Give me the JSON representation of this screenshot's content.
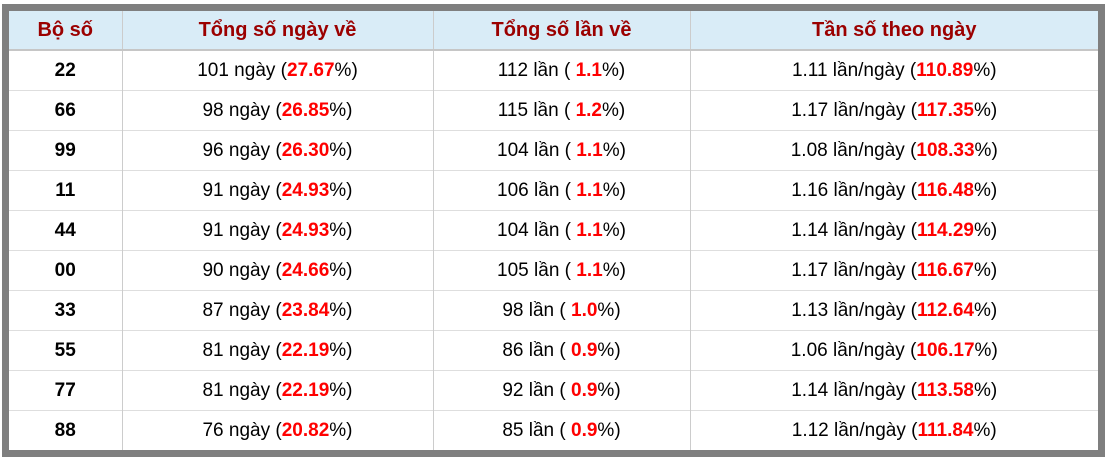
{
  "colors": {
    "outer_border": "#7f7f7f",
    "header_background": "#d9ecf7",
    "header_text": "#9b0000",
    "highlight_red": "#ff0000",
    "row_background": "#ffffff",
    "grid_line": "#cccccc"
  },
  "table": {
    "headers": [
      "Bộ số",
      "Tổng số ngày về",
      "Tổng số lần về",
      "Tần số theo ngày"
    ],
    "rows": [
      {
        "pair": "22",
        "days": {
          "pre": "101 ngày (",
          "em": "27.67",
          "post": "%)"
        },
        "times": {
          "pre": "112 lần ( ",
          "em": "1.1",
          "post": "%)"
        },
        "freq": {
          "pre": "1.11 lần/ngày (",
          "em": "110.89",
          "post": "%)"
        }
      },
      {
        "pair": "66",
        "days": {
          "pre": "98 ngày (",
          "em": "26.85",
          "post": "%)"
        },
        "times": {
          "pre": "115 lần ( ",
          "em": "1.2",
          "post": "%)"
        },
        "freq": {
          "pre": "1.17 lần/ngày (",
          "em": "117.35",
          "post": "%)"
        }
      },
      {
        "pair": "99",
        "days": {
          "pre": "96 ngày (",
          "em": "26.30",
          "post": "%)"
        },
        "times": {
          "pre": "104 lần ( ",
          "em": "1.1",
          "post": "%)"
        },
        "freq": {
          "pre": "1.08 lần/ngày (",
          "em": "108.33",
          "post": "%)"
        }
      },
      {
        "pair": "11",
        "days": {
          "pre": "91 ngày (",
          "em": "24.93",
          "post": "%)"
        },
        "times": {
          "pre": "106 lần ( ",
          "em": "1.1",
          "post": "%)"
        },
        "freq": {
          "pre": "1.16 lần/ngày (",
          "em": "116.48",
          "post": "%)"
        }
      },
      {
        "pair": "44",
        "days": {
          "pre": "91 ngày (",
          "em": "24.93",
          "post": "%)"
        },
        "times": {
          "pre": "104 lần ( ",
          "em": "1.1",
          "post": "%)"
        },
        "freq": {
          "pre": "1.14 lần/ngày (",
          "em": "114.29",
          "post": "%)"
        }
      },
      {
        "pair": "00",
        "days": {
          "pre": "90 ngày (",
          "em": "24.66",
          "post": "%)"
        },
        "times": {
          "pre": "105 lần ( ",
          "em": "1.1",
          "post": "%)"
        },
        "freq": {
          "pre": "1.17 lần/ngày (",
          "em": "116.67",
          "post": "%)"
        }
      },
      {
        "pair": "33",
        "days": {
          "pre": "87 ngày (",
          "em": "23.84",
          "post": "%)"
        },
        "times": {
          "pre": "98 lần ( ",
          "em": "1.0",
          "post": "%)"
        },
        "freq": {
          "pre": "1.13 lần/ngày (",
          "em": "112.64",
          "post": "%)"
        }
      },
      {
        "pair": "55",
        "days": {
          "pre": "81 ngày (",
          "em": "22.19",
          "post": "%)"
        },
        "times": {
          "pre": "86 lần ( ",
          "em": "0.9",
          "post": "%)"
        },
        "freq": {
          "pre": "1.06 lần/ngày (",
          "em": "106.17",
          "post": "%)"
        }
      },
      {
        "pair": "77",
        "days": {
          "pre": "81 ngày (",
          "em": "22.19",
          "post": "%)"
        },
        "times": {
          "pre": "92 lần ( ",
          "em": "0.9",
          "post": "%)"
        },
        "freq": {
          "pre": "1.14 lần/ngày (",
          "em": "113.58",
          "post": "%)"
        }
      },
      {
        "pair": "88",
        "days": {
          "pre": "76 ngày (",
          "em": "20.82",
          "post": "%)"
        },
        "times": {
          "pre": "85 lần ( ",
          "em": "0.9",
          "post": "%)"
        },
        "freq": {
          "pre": "1.12 lần/ngày (",
          "em": "111.84",
          "post": "%)"
        }
      }
    ]
  }
}
